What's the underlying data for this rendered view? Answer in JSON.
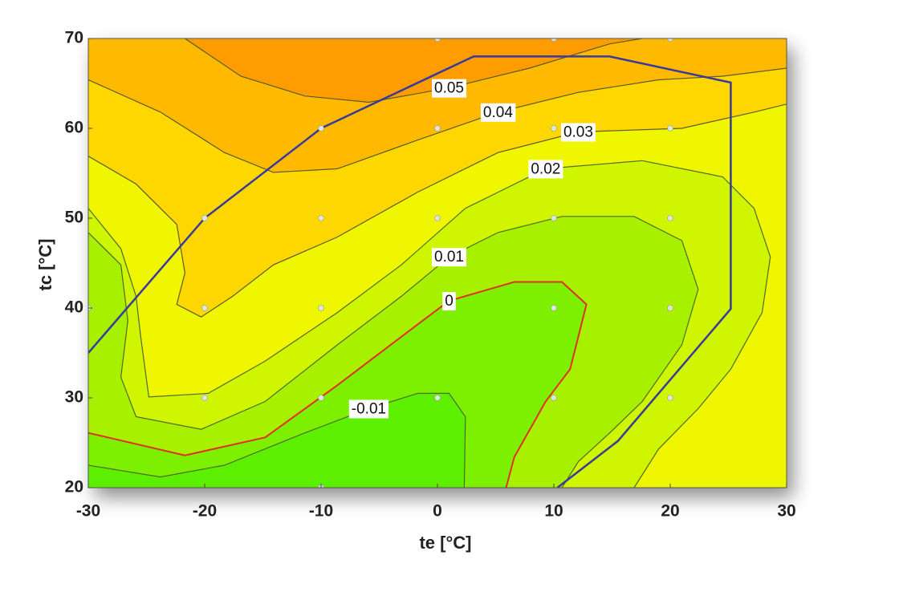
{
  "chart_data": {
    "type": "contour",
    "x_label": "te  [°C]",
    "y_label": "tc  [°C]",
    "xlim": [
      -30,
      30
    ],
    "ylim": [
      20,
      70
    ],
    "xticks": [
      -30,
      -20,
      -10,
      0,
      10,
      20,
      30
    ],
    "yticks": [
      20,
      30,
      40,
      50,
      60,
      70
    ],
    "base_fill": "#5cf000",
    "contours": [
      {
        "level": -0.01,
        "color": "#4e6b2a",
        "fill": "#7cf000",
        "x": [
          -30,
          -23.8,
          -18.3,
          -11.4,
          -5.9,
          -1.7,
          1,
          2.4,
          2.3
        ],
        "y": [
          22.5,
          21.2,
          22.5,
          26.1,
          28.8,
          30.5,
          30.5,
          27.9,
          20
        ]
      },
      {
        "level": 0,
        "color": "#e0301e",
        "fill": "#a6f000",
        "x": [
          -30,
          -21.7,
          -14.8,
          -8.6,
          -3.1,
          1,
          6.6,
          10.7,
          12.8,
          11.4,
          9.3,
          6.6,
          5.9
        ],
        "y": [
          26.1,
          23.6,
          25.6,
          31.4,
          36.8,
          40.8,
          42.9,
          42.9,
          40.4,
          33.2,
          29.6,
          23.4,
          20
        ]
      },
      {
        "level": 0.01,
        "color": "#4e6b2a",
        "fill": "#cff500",
        "x": [
          -30,
          -27.2,
          -26.6,
          -27.2,
          -25.9,
          -20.3,
          -14.8,
          -8.6,
          -3.1,
          1,
          5.2,
          10.7,
          16.9,
          21,
          22.4,
          21,
          17.6,
          14.8,
          12.1,
          10.7
        ],
        "y": [
          48.4,
          44.8,
          38.6,
          32.3,
          27.9,
          26.5,
          29.6,
          35.9,
          41.3,
          45.7,
          48.4,
          50.2,
          50.2,
          47.5,
          42.1,
          35.9,
          29.6,
          26.1,
          22.9,
          20
        ]
      },
      {
        "level": 0.02,
        "color": "#4e6b2a",
        "fill": "#f0f500",
        "x": [
          -30,
          -27.2,
          -25.9,
          -25.5,
          -24.8,
          -19.7,
          -14.8,
          -8.6,
          -3.1,
          2.4,
          9.3,
          17.6,
          24.5,
          27.2,
          28.6,
          27.9,
          25.2,
          22.4,
          19,
          16.9
        ],
        "y": [
          51.1,
          46.6,
          41.3,
          36.8,
          30.1,
          30.5,
          34.1,
          39.5,
          44.8,
          51.1,
          55.5,
          56.4,
          54.6,
          51.1,
          45.7,
          39.5,
          33.2,
          28.8,
          24.3,
          20
        ]
      },
      {
        "level": 0.03,
        "color": "#5a5a2a",
        "fill": "#ffd700",
        "x": [
          -30,
          -25.9,
          -22.4,
          -21.7,
          -22.4,
          -20.3,
          -17.6,
          -14.1,
          -8.6,
          -1.7,
          5.2,
          12.1,
          21,
          27.2,
          30
        ],
        "y": [
          56.9,
          53.8,
          49.3,
          43.9,
          40.4,
          39,
          41.3,
          44.8,
          47.9,
          52.9,
          57.3,
          59.6,
          60,
          61.8,
          62.7
        ]
      },
      {
        "level": 0.04,
        "color": "#5a5a2a",
        "fill": "#ffba00",
        "x": [
          -30,
          -23.8,
          -18.3,
          -14.1,
          -8.6,
          -1.7,
          5.2,
          12.1,
          19,
          24.5,
          30
        ],
        "y": [
          65.4,
          61.8,
          57.3,
          55.1,
          55.5,
          58.7,
          61.8,
          64,
          65.4,
          65.8,
          66.7
        ]
      },
      {
        "level": 0.05,
        "color": "#5a5a2a",
        "fill": "#ff9c00",
        "x": [
          -21.7,
          -16.9,
          -11.4,
          -5.9,
          1,
          7.9,
          14.8,
          17.6
        ],
        "y": [
          70,
          65.8,
          63.6,
          62.9,
          64.5,
          66.7,
          69.4,
          70
        ]
      }
    ],
    "envelope": {
      "color": "#3a3a9a",
      "x": [
        -30,
        -20,
        -10,
        3.1,
        14.8,
        25.2,
        25.2,
        15.5,
        10.3
      ],
      "y": [
        35,
        50,
        60,
        68,
        68,
        65.1,
        39.9,
        25.2,
        20
      ]
    },
    "points": {
      "color": "#dde8dd",
      "x": [
        0,
        10,
        20,
        -10,
        0,
        10,
        20,
        -20,
        -10,
        0,
        10,
        20,
        -30,
        -20,
        -10,
        10,
        20,
        -20,
        -10,
        0,
        10,
        20,
        -10
      ],
      "y": [
        70,
        70,
        70,
        60,
        60,
        60,
        60,
        50,
        50,
        50,
        50,
        50,
        40,
        40,
        40,
        40,
        40,
        30,
        30,
        30,
        30,
        30,
        20
      ]
    }
  }
}
